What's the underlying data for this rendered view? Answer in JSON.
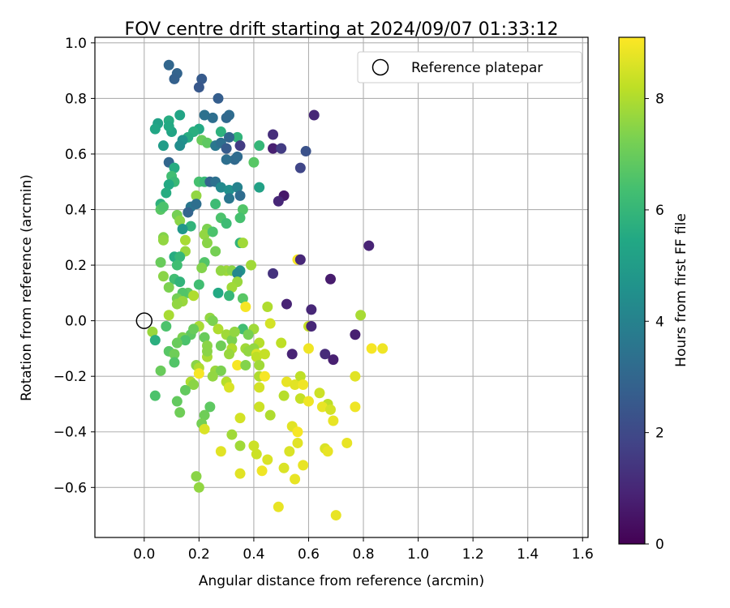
{
  "chart_data": {
    "type": "scatter",
    "title": "FOV centre drift starting at 2024/09/07 01:33:12",
    "xlabel": "Angular distance from reference (arcmin)",
    "ylabel": "Rotation from reference (arcmin)",
    "xlim": [
      -0.18,
      1.62
    ],
    "ylim": [
      -0.78,
      1.02
    ],
    "xticks": [
      "0.0",
      "0.2",
      "0.4",
      "0.6",
      "0.8",
      "1.0",
      "1.2",
      "1.4",
      "1.6"
    ],
    "xtick_values": [
      0,
      0.2,
      0.4,
      0.6,
      0.8,
      1.0,
      1.2,
      1.4,
      1.6
    ],
    "yticks": [
      "1.0",
      "0.8",
      "0.6",
      "0.4",
      "0.2",
      "0.0",
      "−0.2",
      "−0.4",
      "−0.6"
    ],
    "ytick_values": [
      1.0,
      0.8,
      0.6,
      0.4,
      0.2,
      0.0,
      -0.2,
      -0.4,
      -0.6
    ],
    "grid": true,
    "legend": {
      "position": "upper-right",
      "label": "Reference platepar"
    },
    "reference_point": {
      "x": 0.0,
      "y": 0.0
    },
    "colorbar": {
      "label": "Hours from first FF file",
      "colormap": "viridis",
      "range": [
        0,
        9.1
      ],
      "ticks": [
        "0",
        "2",
        "4",
        "6",
        "8"
      ],
      "tick_values": [
        0,
        2,
        4,
        6,
        8
      ]
    },
    "points": [
      {
        "x": 0.09,
        "y": 0.92,
        "c": 3.0
      },
      {
        "x": 0.12,
        "y": 0.89,
        "c": 2.9
      },
      {
        "x": 0.11,
        "y": 0.87,
        "c": 2.8
      },
      {
        "x": 0.21,
        "y": 0.87,
        "c": 2.6
      },
      {
        "x": 0.2,
        "y": 0.84,
        "c": 2.5
      },
      {
        "x": 0.27,
        "y": 0.8,
        "c": 2.7
      },
      {
        "x": 0.62,
        "y": 0.74,
        "c": 1.0
      },
      {
        "x": 0.31,
        "y": 0.74,
        "c": 3.2
      },
      {
        "x": 0.3,
        "y": 0.73,
        "c": 3.1
      },
      {
        "x": 0.22,
        "y": 0.74,
        "c": 3.4
      },
      {
        "x": 0.25,
        "y": 0.73,
        "c": 3.3
      },
      {
        "x": 0.13,
        "y": 0.74,
        "c": 5.3
      },
      {
        "x": 0.05,
        "y": 0.71,
        "c": 5.2
      },
      {
        "x": 0.04,
        "y": 0.69,
        "c": 5.4
      },
      {
        "x": 0.09,
        "y": 0.72,
        "c": 5.6
      },
      {
        "x": 0.1,
        "y": 0.68,
        "c": 5.3
      },
      {
        "x": 0.09,
        "y": 0.7,
        "c": 5.5
      },
      {
        "x": 0.34,
        "y": 0.66,
        "c": 5.9
      },
      {
        "x": 0.28,
        "y": 0.68,
        "c": 5.8
      },
      {
        "x": 0.2,
        "y": 0.69,
        "c": 5.5
      },
      {
        "x": 0.18,
        "y": 0.68,
        "c": 5.7
      },
      {
        "x": 0.16,
        "y": 0.66,
        "c": 5.6
      },
      {
        "x": 0.14,
        "y": 0.65,
        "c": 4.6
      },
      {
        "x": 0.07,
        "y": 0.63,
        "c": 5.0
      },
      {
        "x": 0.13,
        "y": 0.63,
        "c": 4.4
      },
      {
        "x": 0.21,
        "y": 0.65,
        "c": 7.0
      },
      {
        "x": 0.23,
        "y": 0.64,
        "c": 6.8
      },
      {
        "x": 0.26,
        "y": 0.63,
        "c": 3.6
      },
      {
        "x": 0.28,
        "y": 0.64,
        "c": 3.3
      },
      {
        "x": 0.3,
        "y": 0.62,
        "c": 2.6
      },
      {
        "x": 0.35,
        "y": 0.63,
        "c": 1.6
      },
      {
        "x": 0.31,
        "y": 0.66,
        "c": 3.0
      },
      {
        "x": 0.42,
        "y": 0.63,
        "c": 6.0
      },
      {
        "x": 0.47,
        "y": 0.67,
        "c": 1.2
      },
      {
        "x": 0.47,
        "y": 0.62,
        "c": 0.8
      },
      {
        "x": 0.5,
        "y": 0.62,
        "c": 1.6
      },
      {
        "x": 0.59,
        "y": 0.61,
        "c": 2.3
      },
      {
        "x": 0.57,
        "y": 0.55,
        "c": 1.9
      },
      {
        "x": 0.33,
        "y": 0.58,
        "c": 3.1
      },
      {
        "x": 0.3,
        "y": 0.58,
        "c": 3.3
      },
      {
        "x": 0.34,
        "y": 0.59,
        "c": 3.2
      },
      {
        "x": 0.4,
        "y": 0.57,
        "c": 6.7
      },
      {
        "x": 0.09,
        "y": 0.57,
        "c": 3.0
      },
      {
        "x": 0.11,
        "y": 0.55,
        "c": 5.6
      },
      {
        "x": 0.1,
        "y": 0.52,
        "c": 6.3
      },
      {
        "x": 0.11,
        "y": 0.5,
        "c": 6.1
      },
      {
        "x": 0.09,
        "y": 0.49,
        "c": 5.5
      },
      {
        "x": 0.2,
        "y": 0.5,
        "c": 6.4
      },
      {
        "x": 0.22,
        "y": 0.5,
        "c": 6.1
      },
      {
        "x": 0.24,
        "y": 0.5,
        "c": 2.9
      },
      {
        "x": 0.26,
        "y": 0.5,
        "c": 3.4
      },
      {
        "x": 0.28,
        "y": 0.48,
        "c": 4.3
      },
      {
        "x": 0.31,
        "y": 0.47,
        "c": 4.5
      },
      {
        "x": 0.34,
        "y": 0.48,
        "c": 4.0
      },
      {
        "x": 0.35,
        "y": 0.45,
        "c": 3.2
      },
      {
        "x": 0.31,
        "y": 0.44,
        "c": 3.6
      },
      {
        "x": 0.42,
        "y": 0.48,
        "c": 5.2
      },
      {
        "x": 0.51,
        "y": 0.45,
        "c": 0.6
      },
      {
        "x": 0.49,
        "y": 0.43,
        "c": 1.0
      },
      {
        "x": 0.08,
        "y": 0.46,
        "c": 5.6
      },
      {
        "x": 0.06,
        "y": 0.42,
        "c": 5.8
      },
      {
        "x": 0.19,
        "y": 0.45,
        "c": 7.6
      },
      {
        "x": 0.17,
        "y": 0.41,
        "c": 3.6
      },
      {
        "x": 0.19,
        "y": 0.42,
        "c": 3.3
      },
      {
        "x": 0.16,
        "y": 0.39,
        "c": 2.9
      },
      {
        "x": 0.26,
        "y": 0.42,
        "c": 6.2
      },
      {
        "x": 0.06,
        "y": 0.4,
        "c": 6.7
      },
      {
        "x": 0.07,
        "y": 0.41,
        "c": 6.5
      },
      {
        "x": 0.12,
        "y": 0.38,
        "c": 7.2
      },
      {
        "x": 0.36,
        "y": 0.4,
        "c": 6.6
      },
      {
        "x": 0.35,
        "y": 0.37,
        "c": 6.4
      },
      {
        "x": 0.13,
        "y": 0.36,
        "c": 7.5
      },
      {
        "x": 0.28,
        "y": 0.37,
        "c": 6.5
      },
      {
        "x": 0.3,
        "y": 0.35,
        "c": 6.2
      },
      {
        "x": 0.17,
        "y": 0.34,
        "c": 5.9
      },
      {
        "x": 0.14,
        "y": 0.33,
        "c": 4.8
      },
      {
        "x": 0.23,
        "y": 0.33,
        "c": 7.3
      },
      {
        "x": 0.22,
        "y": 0.31,
        "c": 7.6
      },
      {
        "x": 0.25,
        "y": 0.32,
        "c": 6.5
      },
      {
        "x": 0.07,
        "y": 0.3,
        "c": 7.4
      },
      {
        "x": 0.15,
        "y": 0.29,
        "c": 7.9
      },
      {
        "x": 0.07,
        "y": 0.29,
        "c": 7.6
      },
      {
        "x": 0.23,
        "y": 0.28,
        "c": 7.5
      },
      {
        "x": 0.35,
        "y": 0.28,
        "c": 5.9
      },
      {
        "x": 0.36,
        "y": 0.28,
        "c": 7.8
      },
      {
        "x": 0.15,
        "y": 0.25,
        "c": 7.7
      },
      {
        "x": 0.26,
        "y": 0.25,
        "c": 7.2
      },
      {
        "x": 0.82,
        "y": 0.27,
        "c": 0.9
      },
      {
        "x": 0.11,
        "y": 0.23,
        "c": 5.6
      },
      {
        "x": 0.13,
        "y": 0.23,
        "c": 6.0
      },
      {
        "x": 0.06,
        "y": 0.21,
        "c": 7.0
      },
      {
        "x": 0.22,
        "y": 0.21,
        "c": 6.6
      },
      {
        "x": 0.21,
        "y": 0.19,
        "c": 7.4
      },
      {
        "x": 0.56,
        "y": 0.22,
        "c": 9.0
      },
      {
        "x": 0.57,
        "y": 0.22,
        "c": 1.0
      },
      {
        "x": 0.39,
        "y": 0.2,
        "c": 7.8
      },
      {
        "x": 0.12,
        "y": 0.2,
        "c": 6.3
      },
      {
        "x": 0.3,
        "y": 0.18,
        "c": 7.8
      },
      {
        "x": 0.32,
        "y": 0.18,
        "c": 7.5
      },
      {
        "x": 0.35,
        "y": 0.18,
        "c": 4.6
      },
      {
        "x": 0.28,
        "y": 0.18,
        "c": 7.6
      },
      {
        "x": 0.07,
        "y": 0.16,
        "c": 7.5
      },
      {
        "x": 0.34,
        "y": 0.17,
        "c": 4.2
      },
      {
        "x": 0.47,
        "y": 0.17,
        "c": 1.3
      },
      {
        "x": 0.11,
        "y": 0.15,
        "c": 6.3
      },
      {
        "x": 0.13,
        "y": 0.14,
        "c": 5.9
      },
      {
        "x": 0.34,
        "y": 0.14,
        "c": 7.7
      },
      {
        "x": 0.2,
        "y": 0.13,
        "c": 6.3
      },
      {
        "x": 0.32,
        "y": 0.12,
        "c": 7.8
      },
      {
        "x": 0.09,
        "y": 0.12,
        "c": 7.3
      },
      {
        "x": 0.68,
        "y": 0.15,
        "c": 0.7
      },
      {
        "x": 0.16,
        "y": 0.1,
        "c": 6.8
      },
      {
        "x": 0.27,
        "y": 0.1,
        "c": 5.5
      },
      {
        "x": 0.14,
        "y": 0.1,
        "c": 6.6
      },
      {
        "x": 0.18,
        "y": 0.09,
        "c": 8.0
      },
      {
        "x": 0.31,
        "y": 0.09,
        "c": 6.0
      },
      {
        "x": 0.36,
        "y": 0.08,
        "c": 6.7
      },
      {
        "x": 0.12,
        "y": 0.08,
        "c": 7.2
      },
      {
        "x": 0.14,
        "y": 0.07,
        "c": 7.7
      },
      {
        "x": 0.12,
        "y": 0.06,
        "c": 7.6
      },
      {
        "x": 0.37,
        "y": 0.05,
        "c": 9.0
      },
      {
        "x": 0.45,
        "y": 0.05,
        "c": 8.0
      },
      {
        "x": 0.52,
        "y": 0.06,
        "c": 0.9
      },
      {
        "x": 0.61,
        "y": 0.04,
        "c": 1.0
      },
      {
        "x": 0.09,
        "y": 0.02,
        "c": 7.9
      },
      {
        "x": 0.24,
        "y": 0.01,
        "c": 7.6
      },
      {
        "x": 0.25,
        "y": 0.0,
        "c": 7.3
      },
      {
        "x": 0.08,
        "y": -0.02,
        "c": 6.5
      },
      {
        "x": 0.03,
        "y": -0.04,
        "c": 7.7
      },
      {
        "x": 0.2,
        "y": -0.02,
        "c": 7.9
      },
      {
        "x": 0.27,
        "y": -0.03,
        "c": 8.0
      },
      {
        "x": 0.36,
        "y": -0.03,
        "c": 6.3
      },
      {
        "x": 0.4,
        "y": -0.03,
        "c": 7.8
      },
      {
        "x": 0.46,
        "y": -0.01,
        "c": 8.5
      },
      {
        "x": 0.6,
        "y": -0.02,
        "c": 8.3
      },
      {
        "x": 0.61,
        "y": -0.02,
        "c": 1.0
      },
      {
        "x": 0.77,
        "y": -0.05,
        "c": 0.8
      },
      {
        "x": 0.79,
        "y": 0.02,
        "c": 7.9
      },
      {
        "x": 0.04,
        "y": -0.07,
        "c": 5.7
      },
      {
        "x": 0.17,
        "y": -0.05,
        "c": 6.8
      },
      {
        "x": 0.18,
        "y": -0.03,
        "c": 7.0
      },
      {
        "x": 0.14,
        "y": -0.06,
        "c": 7.3
      },
      {
        "x": 0.15,
        "y": -0.07,
        "c": 6.5
      },
      {
        "x": 0.22,
        "y": -0.06,
        "c": 7.0
      },
      {
        "x": 0.3,
        "y": -0.05,
        "c": 7.8
      },
      {
        "x": 0.32,
        "y": -0.07,
        "c": 7.3
      },
      {
        "x": 0.33,
        "y": -0.04,
        "c": 7.6
      },
      {
        "x": 0.38,
        "y": -0.05,
        "c": 7.2
      },
      {
        "x": 0.12,
        "y": -0.08,
        "c": 7.0
      },
      {
        "x": 0.23,
        "y": -0.09,
        "c": 7.5
      },
      {
        "x": 0.28,
        "y": -0.09,
        "c": 7.1
      },
      {
        "x": 0.37,
        "y": -0.1,
        "c": 7.8
      },
      {
        "x": 0.38,
        "y": -0.11,
        "c": 7.6
      },
      {
        "x": 0.09,
        "y": -0.11,
        "c": 6.7
      },
      {
        "x": 0.11,
        "y": -0.12,
        "c": 7.1
      },
      {
        "x": 0.32,
        "y": -0.1,
        "c": 8.0
      },
      {
        "x": 0.42,
        "y": -0.08,
        "c": 8.1
      },
      {
        "x": 0.4,
        "y": -0.1,
        "c": 7.6
      },
      {
        "x": 0.41,
        "y": -0.12,
        "c": 8.6
      },
      {
        "x": 0.23,
        "y": -0.13,
        "c": 7.9
      },
      {
        "x": 0.23,
        "y": -0.11,
        "c": 7.5
      },
      {
        "x": 0.31,
        "y": -0.12,
        "c": 7.7
      },
      {
        "x": 0.34,
        "y": -0.16,
        "c": 9.0
      },
      {
        "x": 0.37,
        "y": -0.16,
        "c": 7.4
      },
      {
        "x": 0.41,
        "y": -0.13,
        "c": 8.2
      },
      {
        "x": 0.44,
        "y": -0.12,
        "c": 8.3
      },
      {
        "x": 0.5,
        "y": -0.08,
        "c": 8.2
      },
      {
        "x": 0.54,
        "y": -0.12,
        "c": 0.9
      },
      {
        "x": 0.6,
        "y": -0.1,
        "c": 8.9
      },
      {
        "x": 0.66,
        "y": -0.12,
        "c": 1.1
      },
      {
        "x": 0.69,
        "y": -0.14,
        "c": 0.8
      },
      {
        "x": 0.83,
        "y": -0.1,
        "c": 9.0
      },
      {
        "x": 0.87,
        "y": -0.1,
        "c": 8.9
      },
      {
        "x": 0.11,
        "y": -0.15,
        "c": 6.6
      },
      {
        "x": 0.06,
        "y": -0.18,
        "c": 7.0
      },
      {
        "x": 0.19,
        "y": -0.16,
        "c": 7.5
      },
      {
        "x": 0.2,
        "y": -0.17,
        "c": 8.0
      },
      {
        "x": 0.2,
        "y": -0.19,
        "c": 9.0
      },
      {
        "x": 0.42,
        "y": -0.16,
        "c": 7.8
      },
      {
        "x": 0.42,
        "y": -0.2,
        "c": 8.0
      },
      {
        "x": 0.26,
        "y": -0.18,
        "c": 7.7
      },
      {
        "x": 0.28,
        "y": -0.18,
        "c": 7.3
      },
      {
        "x": 0.25,
        "y": -0.2,
        "c": 7.6
      },
      {
        "x": 0.3,
        "y": -0.22,
        "c": 8.1
      },
      {
        "x": 0.31,
        "y": -0.24,
        "c": 8.6
      },
      {
        "x": 0.42,
        "y": -0.24,
        "c": 8.5
      },
      {
        "x": 0.17,
        "y": -0.22,
        "c": 8.0
      },
      {
        "x": 0.18,
        "y": -0.23,
        "c": 7.5
      },
      {
        "x": 0.44,
        "y": -0.2,
        "c": 9.0
      },
      {
        "x": 0.52,
        "y": -0.22,
        "c": 8.8
      },
      {
        "x": 0.55,
        "y": -0.23,
        "c": 8.7
      },
      {
        "x": 0.57,
        "y": -0.2,
        "c": 8.2
      },
      {
        "x": 0.58,
        "y": -0.23,
        "c": 8.9
      },
      {
        "x": 0.77,
        "y": -0.2,
        "c": 8.7
      },
      {
        "x": 0.04,
        "y": -0.27,
        "c": 6.5
      },
      {
        "x": 0.15,
        "y": -0.25,
        "c": 6.9
      },
      {
        "x": 0.51,
        "y": -0.27,
        "c": 8.1
      },
      {
        "x": 0.57,
        "y": -0.28,
        "c": 8.3
      },
      {
        "x": 0.6,
        "y": -0.29,
        "c": 8.9
      },
      {
        "x": 0.64,
        "y": -0.26,
        "c": 8.4
      },
      {
        "x": 0.67,
        "y": -0.3,
        "c": 8.2
      },
      {
        "x": 0.65,
        "y": -0.31,
        "c": 8.8
      },
      {
        "x": 0.12,
        "y": -0.29,
        "c": 6.9
      },
      {
        "x": 0.24,
        "y": -0.31,
        "c": 6.8
      },
      {
        "x": 0.42,
        "y": -0.31,
        "c": 8.4
      },
      {
        "x": 0.46,
        "y": -0.34,
        "c": 8.0
      },
      {
        "x": 0.68,
        "y": -0.32,
        "c": 8.5
      },
      {
        "x": 0.77,
        "y": -0.31,
        "c": 8.9
      },
      {
        "x": 0.13,
        "y": -0.33,
        "c": 7.1
      },
      {
        "x": 0.22,
        "y": -0.34,
        "c": 7.1
      },
      {
        "x": 0.35,
        "y": -0.35,
        "c": 8.5
      },
      {
        "x": 0.69,
        "y": -0.36,
        "c": 8.8
      },
      {
        "x": 0.21,
        "y": -0.37,
        "c": 7.2
      },
      {
        "x": 0.22,
        "y": -0.39,
        "c": 8.6
      },
      {
        "x": 0.54,
        "y": -0.38,
        "c": 8.7
      },
      {
        "x": 0.56,
        "y": -0.4,
        "c": 9.0
      },
      {
        "x": 0.32,
        "y": -0.41,
        "c": 7.8
      },
      {
        "x": 0.56,
        "y": -0.44,
        "c": 8.7
      },
      {
        "x": 0.4,
        "y": -0.45,
        "c": 8.4
      },
      {
        "x": 0.35,
        "y": -0.45,
        "c": 7.8
      },
      {
        "x": 0.28,
        "y": -0.47,
        "c": 8.7
      },
      {
        "x": 0.41,
        "y": -0.48,
        "c": 8.4
      },
      {
        "x": 0.53,
        "y": -0.47,
        "c": 8.6
      },
      {
        "x": 0.66,
        "y": -0.46,
        "c": 8.6
      },
      {
        "x": 0.67,
        "y": -0.47,
        "c": 8.8
      },
      {
        "x": 0.74,
        "y": -0.44,
        "c": 8.8
      },
      {
        "x": 0.45,
        "y": -0.5,
        "c": 8.6
      },
      {
        "x": 0.58,
        "y": -0.52,
        "c": 8.8
      },
      {
        "x": 0.51,
        "y": -0.53,
        "c": 8.6
      },
      {
        "x": 0.43,
        "y": -0.54,
        "c": 8.9
      },
      {
        "x": 0.35,
        "y": -0.55,
        "c": 8.7
      },
      {
        "x": 0.55,
        "y": -0.57,
        "c": 8.8
      },
      {
        "x": 0.19,
        "y": -0.56,
        "c": 7.5
      },
      {
        "x": 0.2,
        "y": -0.6,
        "c": 7.6
      },
      {
        "x": 0.49,
        "y": -0.67,
        "c": 8.8
      },
      {
        "x": 0.7,
        "y": -0.7,
        "c": 8.8
      }
    ]
  }
}
